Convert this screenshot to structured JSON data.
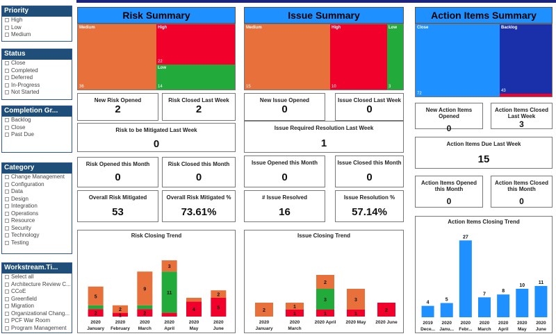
{
  "colors": {
    "medium": "#e8703a",
    "high": "#f0002a",
    "low": "#22aa3a",
    "close": "#1e90ff",
    "backlog": "#1a2faa",
    "bar": "#1e90ff",
    "slicer_head": "#1f4e79"
  },
  "slicers": {
    "priority": {
      "header": "Priority",
      "options": [
        "High",
        "Low",
        "Medium"
      ]
    },
    "status": {
      "header": "Status",
      "options": [
        "Close",
        "Completed",
        "Deferred",
        "In-Progress",
        "Not Started"
      ]
    },
    "completion": {
      "header": "Completion Gr...",
      "options": [
        "Backlog",
        "Close",
        "Past Due"
      ]
    },
    "category": {
      "header": "Category",
      "options": [
        "Change Management",
        "Configuration",
        "Data",
        "Design",
        "Integration",
        "Operations",
        "Resource",
        "Security",
        "Technology",
        "Testing"
      ]
    },
    "workstream": {
      "header": "Workstream.Ti...",
      "options": [
        "Select all",
        "Architecture Review C...",
        "CCoE",
        "Greenfield",
        "Migration",
        "Organizational Chang...",
        "PCF War Room",
        "Program Management"
      ]
    }
  },
  "risk": {
    "header": "Risk Summary",
    "treemap": {
      "medium_label": "Medium",
      "medium_value": "36",
      "high_label": "High",
      "high_value": "22",
      "low_label": "Low",
      "low_value": "14"
    },
    "cards": {
      "new_opened": {
        "title": "New Risk Opened",
        "value": "2"
      },
      "closed_last_week": {
        "title": "Risk Closed Last Week",
        "value": "2"
      },
      "to_be_mitigated": {
        "title": "Risk to be Mitigated Last Week",
        "value": "0"
      },
      "opened_month": {
        "title": "Risk Opened this Month",
        "value": "0"
      },
      "closed_month": {
        "title": "Risk Closed this Month",
        "value": "0"
      },
      "overall_mitigated": {
        "title": "Overall Risk Mitigated",
        "value": "53"
      },
      "overall_pct": {
        "title": "Overall Risk Mitigated %",
        "value": "73.61%"
      }
    }
  },
  "issue": {
    "header": "Issue Summary",
    "treemap": {
      "medium_label": "Medium",
      "medium_value": "15",
      "high_label": "High",
      "high_value": "10",
      "low_label": "Low",
      "low_value": "3"
    },
    "cards": {
      "new_opened": {
        "title": "New Issue Opened",
        "value": "0"
      },
      "closed_last_week": {
        "title": "Issue Closed Last Week",
        "value": "0"
      },
      "required_resolution": {
        "title": "Issue Required Resolution Last Week",
        "value": "1"
      },
      "opened_month": {
        "title": "Issue Opened this Month",
        "value": "0"
      },
      "closed_month": {
        "title": "Issue Closed this Month",
        "value": "0"
      },
      "resolved": {
        "title": "# Issue Resolved",
        "value": "16"
      },
      "resolution_pct": {
        "title": "Issue Resolution %",
        "value": "57.14%"
      }
    }
  },
  "action": {
    "header": "Action Items Summary",
    "treemap": {
      "close_label": "Close",
      "close_value": "72",
      "backlog_label": "Backlog",
      "backlog_value": "43"
    },
    "cards": {
      "new_opened": {
        "title": "New Action Items Opened",
        "value": "0"
      },
      "closed_last_week": {
        "title": "Action Items Closed Last Week",
        "value": "3"
      },
      "due_last_week": {
        "title": "Action Items Due Last Week",
        "value": "15"
      },
      "opened_month": {
        "title": "Action Items Opened this Month",
        "value": "0"
      },
      "closed_month": {
        "title": "Action Items Closed this Month",
        "value": "0"
      }
    }
  },
  "chart_data": [
    {
      "type": "bar",
      "title": "Risk Closing Trend",
      "categories": [
        [
          "2020",
          "January"
        ],
        [
          "2020",
          "February"
        ],
        [
          "2020",
          "March"
        ],
        [
          "2020",
          "April"
        ],
        [
          "2020",
          "May"
        ],
        [
          "2020",
          "June"
        ]
      ],
      "series": [
        {
          "name": "High",
          "values": [
            2,
            1,
            2,
            1,
            4,
            5
          ]
        },
        {
          "name": "Low",
          "values": [
            1,
            0,
            1,
            11,
            0,
            0
          ]
        },
        {
          "name": "Medium",
          "values": [
            5,
            2,
            9,
            3,
            1,
            2
          ]
        }
      ],
      "value_labels": [
        [
          "2",
          "",
          "5"
        ],
        [
          "1",
          "",
          "2"
        ],
        [
          "2",
          "",
          "9"
        ],
        [
          "",
          "11",
          "3"
        ],
        [
          "4",
          "",
          ""
        ],
        [
          "5",
          "",
          "2"
        ]
      ]
    },
    {
      "type": "bar",
      "title": "Issue Closing Trend",
      "categories": [
        [
          "2020",
          "January"
        ],
        [
          "2020",
          "March"
        ],
        [
          "2020 April"
        ],
        [
          "2020 May"
        ],
        [
          "2020 June"
        ]
      ],
      "series": [
        {
          "name": "High",
          "values": [
            0,
            1,
            1,
            1,
            2
          ]
        },
        {
          "name": "Low",
          "values": [
            0,
            0,
            3,
            0,
            0
          ]
        },
        {
          "name": "Medium",
          "values": [
            2,
            1,
            2,
            3,
            0
          ]
        }
      ],
      "value_labels": [
        [
          "",
          "",
          "2"
        ],
        [
          "1",
          "",
          "1"
        ],
        [
          "1",
          "3",
          "2"
        ],
        [
          "1",
          "",
          "3"
        ],
        [
          "2",
          "",
          ""
        ]
      ]
    },
    {
      "type": "bar",
      "title": "Action Items Closing Trend",
      "categories": [
        [
          "2019",
          "Dece..."
        ],
        [
          "2020",
          "Janu..."
        ],
        [
          "2020",
          "Febr..."
        ],
        [
          "2020",
          "March"
        ],
        [
          "2020",
          "April"
        ],
        [
          "2020",
          "May"
        ],
        [
          "2020",
          "June"
        ]
      ],
      "series": [
        {
          "values": [
            4,
            5,
            27,
            7,
            8,
            10,
            11
          ]
        }
      ]
    }
  ]
}
